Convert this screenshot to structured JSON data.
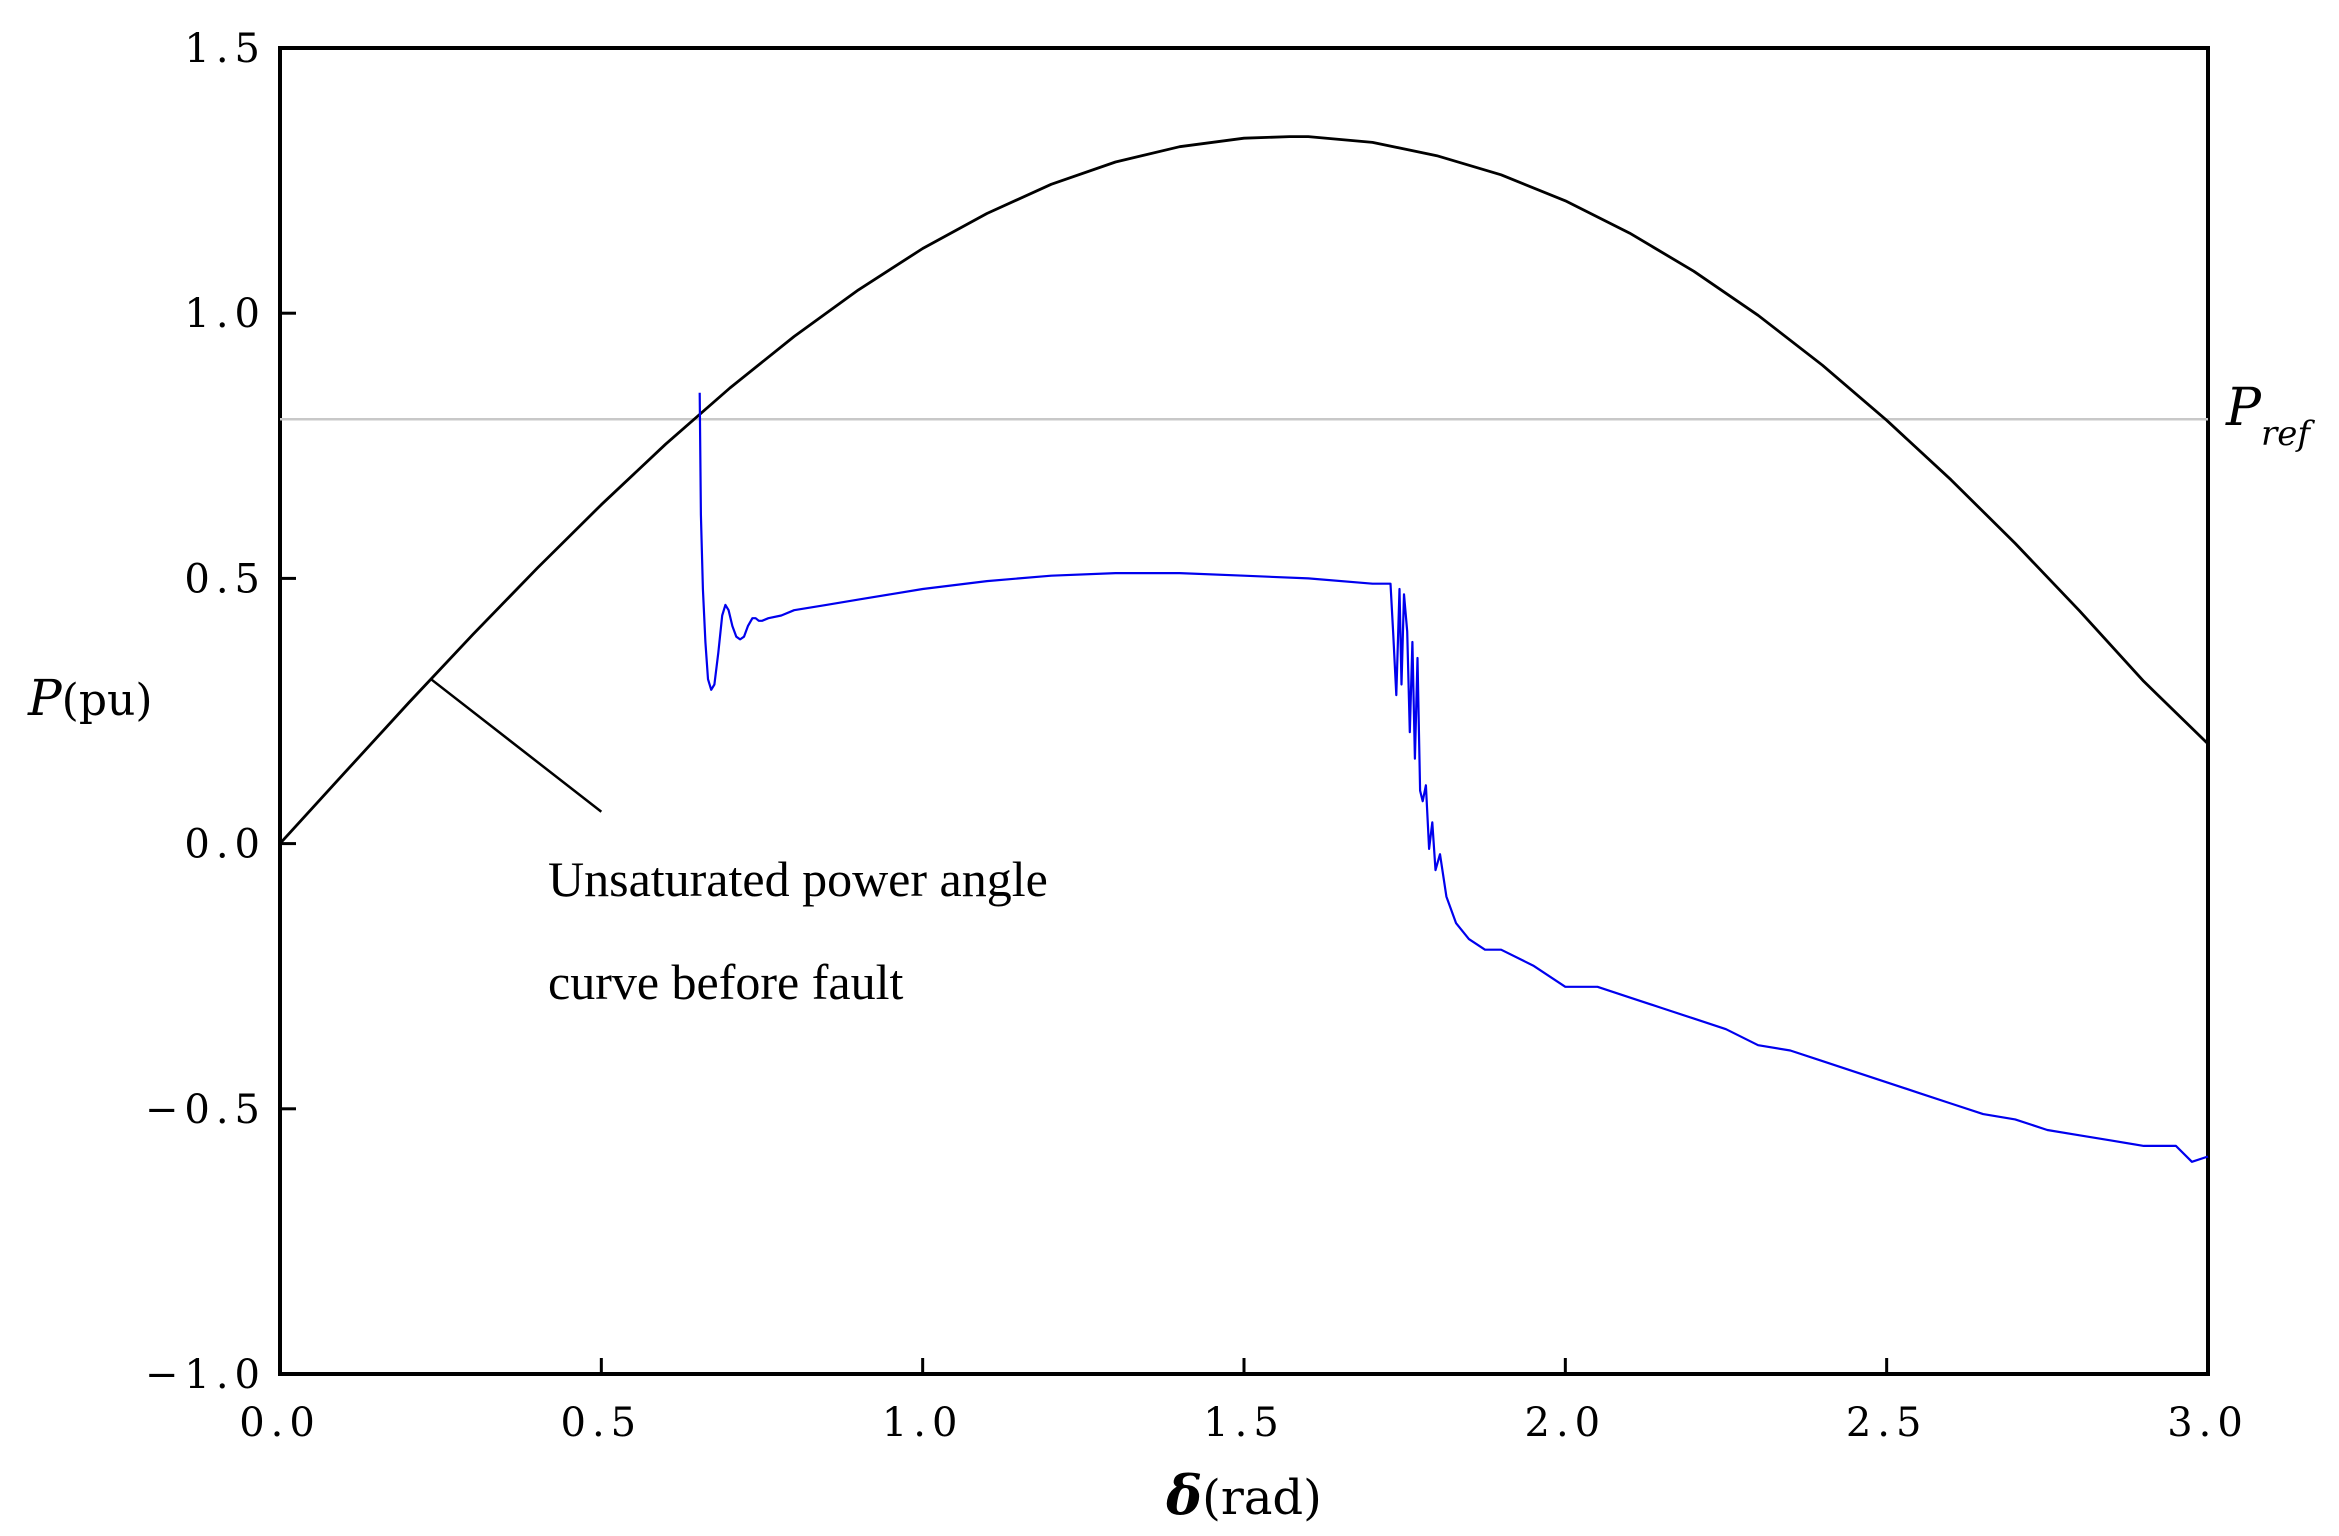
{
  "chart_data": {
    "type": "line",
    "xlabel": {
      "symbol": "δ",
      "unit": "(rad)"
    },
    "ylabel": {
      "symbol": "P",
      "unit": "(pu)"
    },
    "xlim": [
      0,
      3
    ],
    "ylim": [
      -1,
      1.5
    ],
    "xticks": [
      "0.0",
      "0.5",
      "1.0",
      "1.5",
      "2.0",
      "2.5",
      "3.0"
    ],
    "yticks": [
      "−1.0",
      "−0.5",
      "0.0",
      "0.5",
      "1.0",
      "1.5"
    ],
    "xtick_values": [
      0,
      0.5,
      1,
      1.5,
      2,
      2.5,
      3
    ],
    "ytick_values": [
      -1,
      -0.5,
      0,
      0.5,
      1,
      1.5
    ],
    "grid": false,
    "reference_line": {
      "y": 0.8,
      "label_main": "P",
      "label_sub": "ref",
      "color": "#c8c8c8"
    },
    "annotation": {
      "lines": [
        "Unsaturated power angle",
        "curve before fault"
      ],
      "pointer_from": [
        0.5,
        0.06
      ],
      "pointer_to": [
        0.235,
        0.31
      ]
    },
    "series": [
      {
        "color": "#000000",
        "x": [
          0,
          0.1,
          0.2,
          0.3,
          0.4,
          0.5,
          0.6,
          0.7,
          0.8,
          0.9,
          1.0,
          1.1,
          1.2,
          1.3,
          1.4,
          1.5,
          1.571,
          1.6,
          1.7,
          1.8,
          1.9,
          2.0,
          2.1,
          2.2,
          2.3,
          2.4,
          2.5,
          2.6,
          2.7,
          2.8,
          2.9,
          3.0
        ],
        "y": [
          0,
          0.133,
          0.265,
          0.394,
          0.519,
          0.639,
          0.753,
          0.859,
          0.956,
          1.044,
          1.122,
          1.188,
          1.243,
          1.285,
          1.314,
          1.33,
          1.333,
          1.333,
          1.322,
          1.297,
          1.261,
          1.212,
          1.151,
          1.079,
          0.996,
          0.902,
          0.798,
          0.686,
          0.566,
          0.439,
          0.306,
          0.188
        ]
      },
      {
        "color": "#0000ee",
        "x": [
          0.653,
          0.655,
          0.658,
          0.662,
          0.666,
          0.671,
          0.676,
          0.682,
          0.688,
          0.693,
          0.698,
          0.704,
          0.71,
          0.716,
          0.722,
          0.728,
          0.735,
          0.74,
          0.745,
          0.75,
          0.76,
          0.78,
          0.8,
          0.85,
          0.9,
          0.95,
          1.0,
          1.1,
          1.2,
          1.3,
          1.4,
          1.5,
          1.6,
          1.7,
          1.728,
          1.732,
          1.737,
          1.742,
          1.745,
          1.749,
          1.754,
          1.758,
          1.762,
          1.766,
          1.77,
          1.774,
          1.778,
          1.783,
          1.788,
          1.793,
          1.798,
          1.805,
          1.815,
          1.83,
          1.85,
          1.875,
          1.9,
          1.95,
          2.0,
          2.05,
          2.1,
          2.15,
          2.2,
          2.25,
          2.3,
          2.35,
          2.4,
          2.45,
          2.5,
          2.55,
          2.6,
          2.65,
          2.7,
          2.75,
          2.8,
          2.85,
          2.9,
          2.95,
          2.975,
          3.0
        ],
        "y": [
          0.85,
          0.62,
          0.48,
          0.38,
          0.31,
          0.29,
          0.3,
          0.36,
          0.43,
          0.45,
          0.44,
          0.41,
          0.39,
          0.385,
          0.39,
          0.41,
          0.425,
          0.425,
          0.42,
          0.42,
          0.425,
          0.43,
          0.44,
          0.45,
          0.46,
          0.47,
          0.48,
          0.495,
          0.505,
          0.51,
          0.51,
          0.505,
          0.5,
          0.49,
          0.49,
          0.4,
          0.28,
          0.48,
          0.3,
          0.47,
          0.4,
          0.21,
          0.38,
          0.16,
          0.35,
          0.1,
          0.08,
          0.11,
          -0.01,
          0.04,
          -0.05,
          -0.02,
          -0.1,
          -0.15,
          -0.18,
          -0.2,
          -0.2,
          -0.23,
          -0.27,
          -0.27,
          -0.29,
          -0.31,
          -0.33,
          -0.35,
          -0.38,
          -0.39,
          -0.41,
          -0.43,
          -0.45,
          -0.47,
          -0.49,
          -0.51,
          -0.52,
          -0.54,
          -0.55,
          -0.56,
          -0.57,
          -0.57,
          -0.6,
          -0.59
        ]
      }
    ]
  }
}
